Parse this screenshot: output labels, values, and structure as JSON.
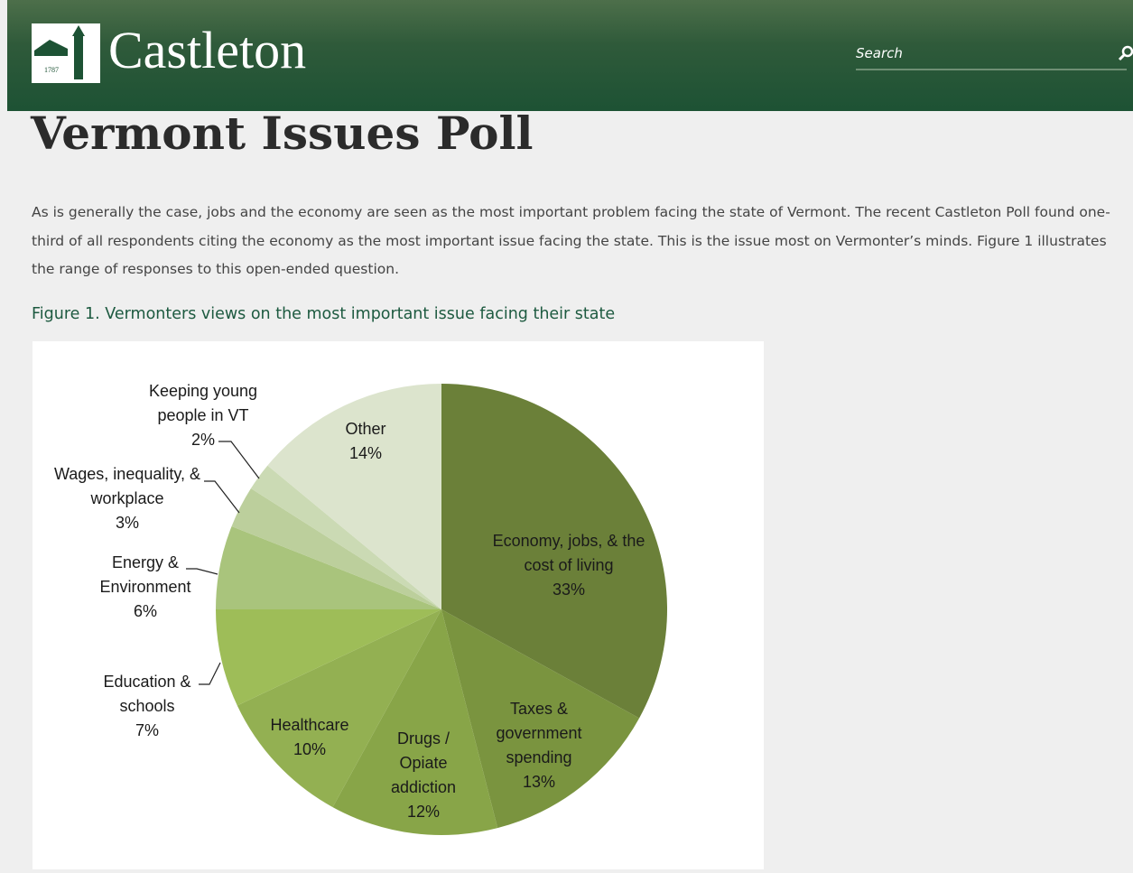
{
  "header": {
    "logo_year": "1787",
    "logo_text": "Castleton",
    "search_placeholder": "Search"
  },
  "page": {
    "title": "Vermont Issues Poll",
    "paragraph": "As is generally the case, jobs and the economy are seen as the most important problem facing the state of Vermont. The recent Castleton Poll found one-third of all respondents citing the economy as the most important issue facing the state. This is the issue most on Vermonter’s minds.  Figure 1 illustrates the range of responses to this open-ended question.",
    "figure_caption": "Figure 1. Vermonters views on the most important issue facing their state"
  },
  "chart_data": {
    "type": "pie",
    "categories": [
      "Economy, jobs, & the cost of living",
      "Taxes & government spending",
      "Drugs / Opiate addiction",
      "Healthcare",
      "Education & schools",
      "Energy & Environment",
      "Wages, inequality, & workplace",
      "Keeping young people in VT",
      "Other"
    ],
    "values": [
      33,
      13,
      12,
      10,
      7,
      6,
      3,
      2,
      14
    ],
    "value_labels": [
      "33%",
      "13%",
      "12%",
      "10%",
      "7%",
      "6%",
      "3%",
      "2%",
      "14%"
    ],
    "colors": [
      "#6b8039",
      "#7a943f",
      "#88a548",
      "#93b052",
      "#9ebd58",
      "#a9c47c",
      "#bccf9c",
      "#cbdab4",
      "#dce4cd"
    ]
  }
}
